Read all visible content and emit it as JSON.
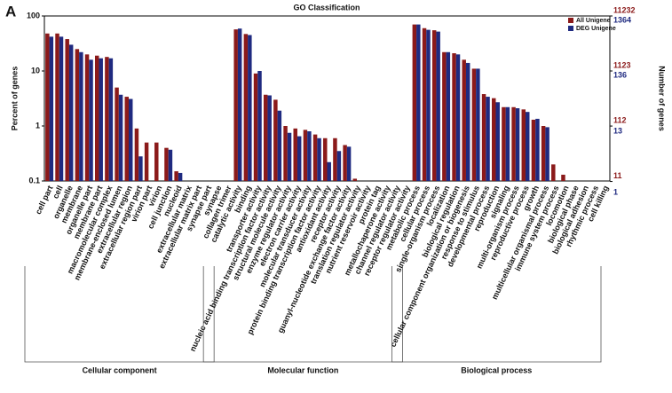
{
  "chart_data": {
    "type": "bar",
    "panel_label": "A",
    "title": "GO Classification",
    "y_label": "Percent of genes",
    "y2_label": "Number of genes",
    "log_scale": true,
    "legend": "top-right",
    "ylim": [
      0.1,
      100
    ],
    "yticks": [
      0.1,
      1,
      10,
      100
    ],
    "y2lim": [
      11.232,
      11232
    ],
    "y2ticks": [
      11232,
      1123,
      112,
      11
    ],
    "y2color": "#8b1a1a",
    "y3lim": [
      1.364,
      1364
    ],
    "y3ticks": [
      1364,
      136,
      13,
      1
    ],
    "y3color": "#1f2a80",
    "groups": [
      {
        "name": "Cellular component",
        "categories": [
          "cell part",
          "cell",
          "organelle",
          "membrane",
          "organelle part",
          "membrane part",
          "macromolecular complex",
          "membrane-enclosed lumen",
          "extracellular region",
          "extracellular region part",
          "virion part",
          "virion",
          "cell junction",
          "nucleoid",
          "extracellular matrix",
          "extracellular matrix part",
          "synapse part",
          "synapse"
        ]
      },
      {
        "name": "Molecular function",
        "categories": [
          "collagen trimer",
          "catalytic activity",
          "binding",
          "transporter activity",
          "nucleic acid binding transcription factor activity",
          "structural molecule activity",
          "enzyme regulator activity",
          "electron carrier activity",
          "molecular transducer activity",
          "protein binding transcription factor activity",
          "antioxidant activity",
          "receptor activity",
          "guanyl-nucleotide exchange factor activity",
          "translation regulator activity",
          "nutrient reservoir activity",
          "protein tag",
          "metallochaperone activity",
          "channel regulator activity",
          "receptor regulator activity"
        ]
      },
      {
        "name": "Biological process",
        "categories": [
          "metabolic process",
          "cellular process",
          "single-organism process",
          "localization",
          "biological regulation",
          "cellular component organization or biogenesis",
          "response to stimulus",
          "developmental process",
          "reproduction",
          "signaling",
          "multi-organism process",
          "reproductive process",
          "growth",
          "multicellular organismal process",
          "immune system process",
          "locomotion",
          "biological phase",
          "biological adhesion",
          "rhythmic process",
          "cell killing"
        ]
      }
    ],
    "series": [
      {
        "name": "All Unigene",
        "color": "#8b1a1a",
        "values": [
          [
            48,
            48,
            38,
            25,
            20,
            19,
            18,
            5,
            3.4,
            0.9,
            0.5,
            0.5,
            0.4,
            0.15,
            null,
            null,
            null,
            null
          ],
          [
            null,
            57,
            47,
            9,
            3.7,
            3,
            1,
            0.9,
            0.85,
            0.7,
            0.6,
            0.6,
            0.45,
            0.11,
            null,
            null,
            null,
            null,
            null
          ],
          [
            70,
            60,
            55,
            22,
            21,
            16,
            11,
            3.8,
            3.2,
            2.2,
            2.2,
            2,
            1.3,
            1,
            0.2,
            0.13,
            null,
            null,
            null,
            null
          ]
        ]
      },
      {
        "name": "DEG Unigene",
        "color": "#1f2a80",
        "values": [
          [
            42,
            42,
            30,
            22,
            16,
            17,
            17,
            3.7,
            3.1,
            0.28,
            null,
            null,
            0.37,
            0.14,
            null,
            null,
            null,
            null
          ],
          [
            null,
            59,
            45,
            10,
            3.6,
            1.9,
            0.75,
            0.65,
            0.8,
            0.6,
            0.22,
            0.35,
            0.42,
            null,
            null,
            null,
            null,
            null,
            null
          ],
          [
            70,
            56,
            52,
            22,
            20,
            14,
            11,
            3.4,
            2.7,
            2.2,
            2.1,
            1.8,
            1.35,
            0.95,
            null,
            null,
            null,
            null,
            null,
            null
          ]
        ]
      }
    ]
  }
}
